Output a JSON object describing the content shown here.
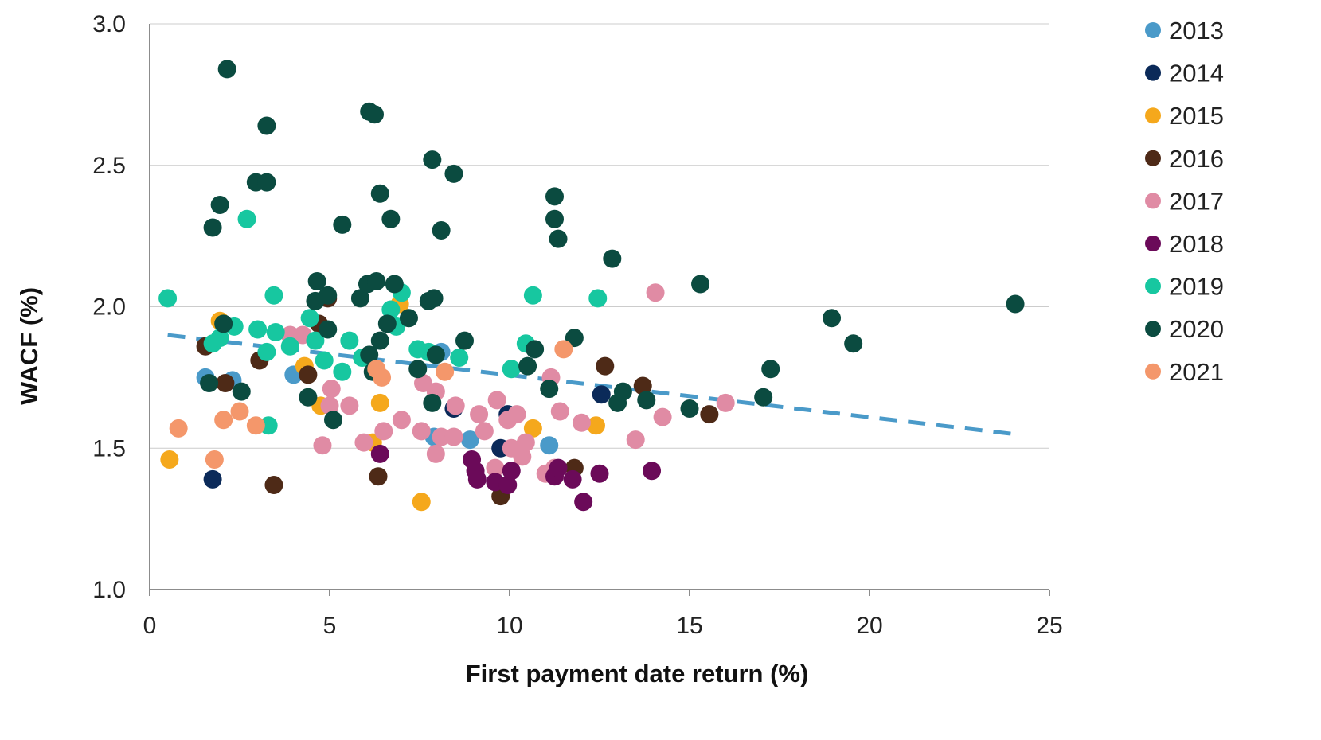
{
  "chart_data": {
    "type": "scatter",
    "title": "",
    "xlabel": "First payment date return (%)",
    "ylabel": "WACF (%)",
    "xlim": [
      0,
      25
    ],
    "ylim": [
      1.0,
      3.0
    ],
    "xticks": [
      0,
      5,
      10,
      15,
      20,
      25
    ],
    "xtick_labels": [
      "0",
      "5",
      "10",
      "15",
      "20",
      "25"
    ],
    "yticks": [
      1.0,
      1.5,
      2.0,
      2.5,
      3.0
    ],
    "ytick_labels": [
      "1.0",
      "1.5",
      "2.0",
      "2.5",
      "3.0"
    ],
    "grid": "horizontal",
    "legend_position": "right",
    "series": [
      {
        "name": "2013",
        "color": "#4a9ac9",
        "points": [
          [
            1.55,
            1.75
          ],
          [
            2.3,
            1.74
          ],
          [
            4.0,
            1.76
          ],
          [
            7.9,
            1.54
          ],
          [
            8.1,
            1.84
          ],
          [
            8.9,
            1.53
          ],
          [
            11.1,
            1.51
          ]
        ]
      },
      {
        "name": "2014",
        "color": "#0b2a59",
        "points": [
          [
            1.75,
            1.39
          ],
          [
            8.45,
            1.64
          ],
          [
            9.75,
            1.5
          ],
          [
            9.95,
            1.62
          ],
          [
            12.55,
            1.69
          ]
        ]
      },
      {
        "name": "2015",
        "color": "#f5a81c",
        "points": [
          [
            0.55,
            1.46
          ],
          [
            1.95,
            1.95
          ],
          [
            4.3,
            1.79
          ],
          [
            4.75,
            1.65
          ],
          [
            6.2,
            1.52
          ],
          [
            6.4,
            1.66
          ],
          [
            6.95,
            2.01
          ],
          [
            7.55,
            1.31
          ],
          [
            10.65,
            1.57
          ],
          [
            12.4,
            1.58
          ]
        ]
      },
      {
        "name": "2016",
        "color": "#4e2a17",
        "points": [
          [
            1.55,
            1.86
          ],
          [
            2.1,
            1.73
          ],
          [
            3.05,
            1.81
          ],
          [
            3.45,
            1.37
          ],
          [
            4.4,
            1.76
          ],
          [
            4.7,
            1.94
          ],
          [
            4.95,
            2.03
          ],
          [
            6.35,
            1.4
          ],
          [
            9.75,
            1.33
          ],
          [
            11.8,
            1.43
          ],
          [
            12.65,
            1.79
          ],
          [
            13.7,
            1.72
          ],
          [
            15.55,
            1.62
          ]
        ]
      },
      {
        "name": "2017",
        "color": "#e08ba4",
        "points": [
          [
            3.9,
            1.9
          ],
          [
            4.25,
            1.9
          ],
          [
            4.8,
            1.51
          ],
          [
            5.0,
            1.65
          ],
          [
            5.55,
            1.65
          ],
          [
            5.95,
            1.52
          ],
          [
            6.5,
            1.56
          ],
          [
            7.0,
            1.6
          ],
          [
            7.55,
            1.56
          ],
          [
            7.6,
            1.73
          ],
          [
            7.95,
            1.48
          ],
          [
            7.95,
            1.7
          ],
          [
            8.1,
            1.54
          ],
          [
            8.45,
            1.54
          ],
          [
            8.5,
            1.65
          ],
          [
            9.15,
            1.62
          ],
          [
            9.3,
            1.56
          ],
          [
            9.6,
            1.43
          ],
          [
            9.65,
            1.67
          ],
          [
            9.95,
            1.6
          ],
          [
            10.05,
            1.5
          ],
          [
            10.2,
            1.62
          ],
          [
            10.35,
            1.47
          ],
          [
            10.45,
            1.52
          ],
          [
            11.0,
            1.41
          ],
          [
            11.25,
            1.43
          ],
          [
            11.15,
            1.75
          ],
          [
            11.4,
            1.63
          ],
          [
            12.0,
            1.59
          ],
          [
            13.5,
            1.53
          ],
          [
            14.25,
            1.61
          ],
          [
            14.05,
            2.05
          ],
          [
            16.0,
            1.66
          ],
          [
            5.05,
            1.71
          ]
        ]
      },
      {
        "name": "2018",
        "color": "#6b0a59",
        "points": [
          [
            6.4,
            1.48
          ],
          [
            8.95,
            1.46
          ],
          [
            9.05,
            1.42
          ],
          [
            9.1,
            1.39
          ],
          [
            9.6,
            1.38
          ],
          [
            9.95,
            1.37
          ],
          [
            10.05,
            1.42
          ],
          [
            11.25,
            1.4
          ],
          [
            11.35,
            1.43
          ],
          [
            11.75,
            1.39
          ],
          [
            12.05,
            1.31
          ],
          [
            12.5,
            1.41
          ],
          [
            13.95,
            1.42
          ]
        ]
      },
      {
        "name": "2019",
        "color": "#17c7a0",
        "points": [
          [
            0.5,
            2.03
          ],
          [
            1.75,
            1.87
          ],
          [
            1.95,
            1.89
          ],
          [
            2.35,
            1.93
          ],
          [
            2.7,
            2.31
          ],
          [
            3.0,
            1.92
          ],
          [
            3.25,
            1.84
          ],
          [
            3.3,
            1.58
          ],
          [
            3.45,
            2.04
          ],
          [
            3.5,
            1.91
          ],
          [
            3.9,
            1.86
          ],
          [
            4.45,
            1.96
          ],
          [
            4.6,
            1.88
          ],
          [
            4.85,
            1.81
          ],
          [
            5.35,
            1.77
          ],
          [
            5.55,
            1.88
          ],
          [
            5.9,
            1.82
          ],
          [
            6.7,
            1.99
          ],
          [
            6.85,
            1.93
          ],
          [
            7.0,
            2.05
          ],
          [
            7.45,
            1.85
          ],
          [
            7.75,
            1.84
          ],
          [
            8.6,
            1.82
          ],
          [
            10.05,
            1.78
          ],
          [
            10.45,
            1.87
          ],
          [
            10.65,
            2.04
          ],
          [
            12.45,
            2.03
          ]
        ]
      },
      {
        "name": "2020",
        "color": "#0b4b40",
        "points": [
          [
            1.65,
            1.73
          ],
          [
            1.75,
            2.28
          ],
          [
            1.95,
            2.36
          ],
          [
            2.05,
            1.94
          ],
          [
            2.15,
            2.84
          ],
          [
            2.55,
            1.7
          ],
          [
            2.95,
            2.44
          ],
          [
            3.25,
            2.44
          ],
          [
            3.25,
            2.64
          ],
          [
            4.4,
            1.68
          ],
          [
            4.6,
            2.02
          ],
          [
            4.65,
            2.09
          ],
          [
            4.95,
            1.92
          ],
          [
            4.95,
            2.04
          ],
          [
            5.1,
            1.6
          ],
          [
            5.35,
            2.29
          ],
          [
            5.85,
            2.03
          ],
          [
            6.05,
            2.08
          ],
          [
            6.1,
            1.83
          ],
          [
            6.1,
            2.69
          ],
          [
            6.25,
            2.68
          ],
          [
            6.2,
            1.77
          ],
          [
            6.3,
            2.09
          ],
          [
            6.4,
            1.88
          ],
          [
            6.4,
            2.4
          ],
          [
            6.6,
            1.94
          ],
          [
            6.7,
            2.31
          ],
          [
            6.8,
            2.08
          ],
          [
            7.2,
            1.96
          ],
          [
            7.45,
            1.78
          ],
          [
            7.75,
            2.02
          ],
          [
            7.85,
            1.66
          ],
          [
            7.85,
            2.52
          ],
          [
            7.9,
            2.03
          ],
          [
            7.95,
            1.83
          ],
          [
            8.1,
            2.27
          ],
          [
            8.45,
            2.47
          ],
          [
            8.75,
            1.88
          ],
          [
            10.5,
            1.79
          ],
          [
            10.7,
            1.85
          ],
          [
            11.1,
            1.71
          ],
          [
            11.25,
            2.39
          ],
          [
            11.25,
            2.31
          ],
          [
            11.35,
            2.24
          ],
          [
            11.8,
            1.89
          ],
          [
            12.85,
            2.17
          ],
          [
            13.0,
            1.66
          ],
          [
            13.15,
            1.7
          ],
          [
            13.8,
            1.67
          ],
          [
            15.0,
            1.64
          ],
          [
            15.3,
            2.08
          ],
          [
            17.05,
            1.68
          ],
          [
            17.25,
            1.78
          ],
          [
            18.95,
            1.96
          ],
          [
            19.55,
            1.87
          ],
          [
            24.05,
            2.01
          ]
        ]
      },
      {
        "name": "2021",
        "color": "#f4976b",
        "points": [
          [
            0.8,
            1.57
          ],
          [
            1.8,
            1.46
          ],
          [
            2.05,
            1.6
          ],
          [
            2.5,
            1.63
          ],
          [
            2.95,
            1.58
          ],
          [
            6.3,
            1.78
          ],
          [
            6.45,
            1.75
          ],
          [
            8.2,
            1.77
          ],
          [
            11.5,
            1.85
          ]
        ]
      }
    ],
    "trendline": {
      "style": "dashed",
      "color": "#4a9ac9",
      "from": [
        0.5,
        1.9
      ],
      "to": [
        24.0,
        1.55
      ]
    }
  }
}
